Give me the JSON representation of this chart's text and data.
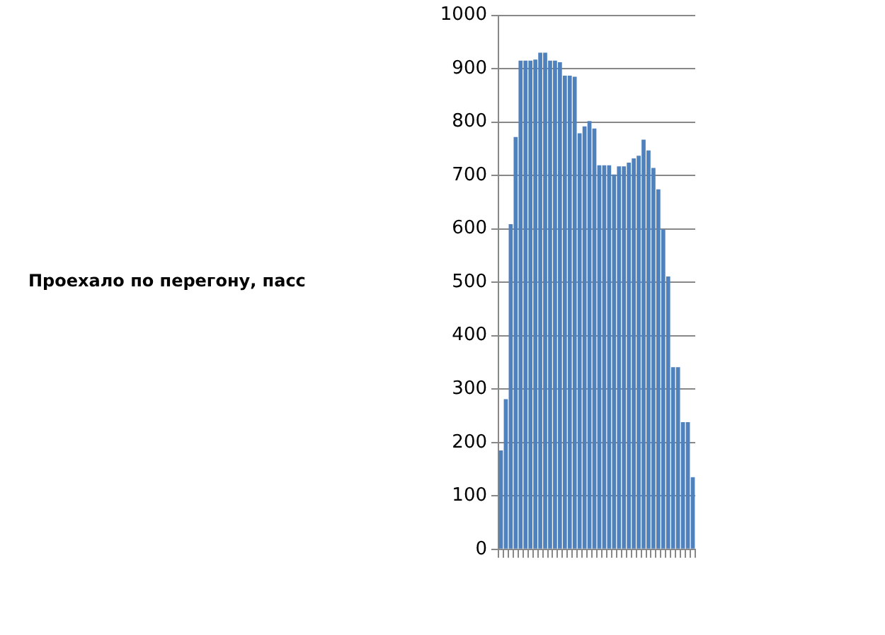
{
  "chart_data": {
    "type": "bar",
    "annotations": [
      "Проехало по перегону, пасс"
    ],
    "categories": [
      null,
      null,
      null,
      null,
      null,
      null,
      null,
      null,
      null,
      null,
      null,
      null,
      null,
      null,
      null,
      null,
      null,
      null,
      null,
      null,
      null,
      null,
      null,
      null,
      null,
      null,
      null,
      null,
      null,
      null,
      null,
      null,
      null,
      null,
      null,
      null,
      null,
      null,
      null,
      null
    ],
    "values": [
      185,
      281,
      609,
      772,
      915,
      915,
      915,
      917,
      930,
      930,
      915,
      915,
      912,
      887,
      887,
      885,
      779,
      792,
      802,
      788,
      719,
      719,
      719,
      702,
      717,
      717,
      724,
      732,
      737,
      767,
      747,
      714,
      674,
      599,
      511,
      341,
      341,
      238,
      238,
      135
    ],
    "color": "#4f81bd",
    "ylim": [
      0,
      1000
    ],
    "yticks": [
      0,
      100,
      200,
      300,
      400,
      500,
      600,
      700,
      800,
      900,
      1000
    ],
    "grid": "y",
    "legend": false
  }
}
